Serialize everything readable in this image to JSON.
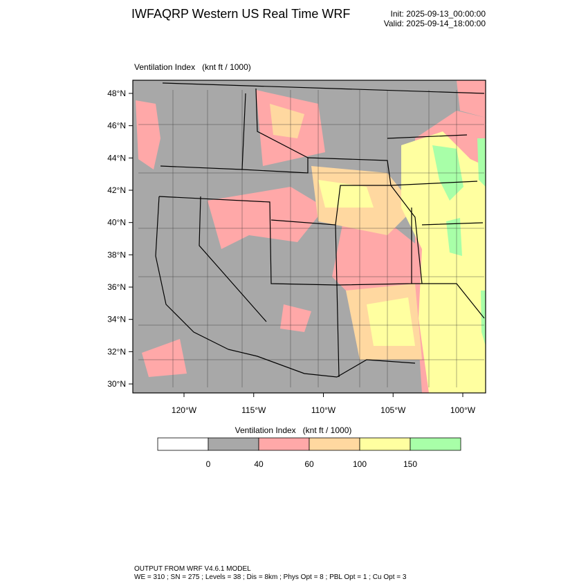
{
  "header": {
    "title": "IWFAQRP Western US Real Time WRF",
    "init": "Init: 2025-09-13_00:00:00",
    "valid": "Valid: 2025-09-14_18:00:00"
  },
  "map": {
    "label": "Ventilation Index   (knt ft / 1000)",
    "lat_labels": [
      "48°N",
      "46°N",
      "44°N",
      "42°N",
      "40°N",
      "38°N",
      "36°N",
      "34°N",
      "32°N",
      "30°N"
    ],
    "lon_labels": [
      "120°W",
      "115°W",
      "110°W",
      "105°W",
      "100°W"
    ]
  },
  "colorbar": {
    "title": "Ventilation Index   (knt ft / 1000)",
    "colors": [
      "#ffffff",
      "#a8a8a8",
      "#ffa8a8",
      "#ffd8a0",
      "#ffffa0",
      "#a8ffa8"
    ],
    "ticks": [
      "0",
      "40",
      "60",
      "100",
      "150"
    ]
  },
  "footer": {
    "line1": "OUTPUT FROM WRF V4.6.1 MODEL",
    "line2": "WE = 310 ; SN = 275 ; Levels = 38 ; Dis = 8km ; Phys Opt = 8 ; PBL Opt = 1 ; Cu Opt = 3"
  }
}
